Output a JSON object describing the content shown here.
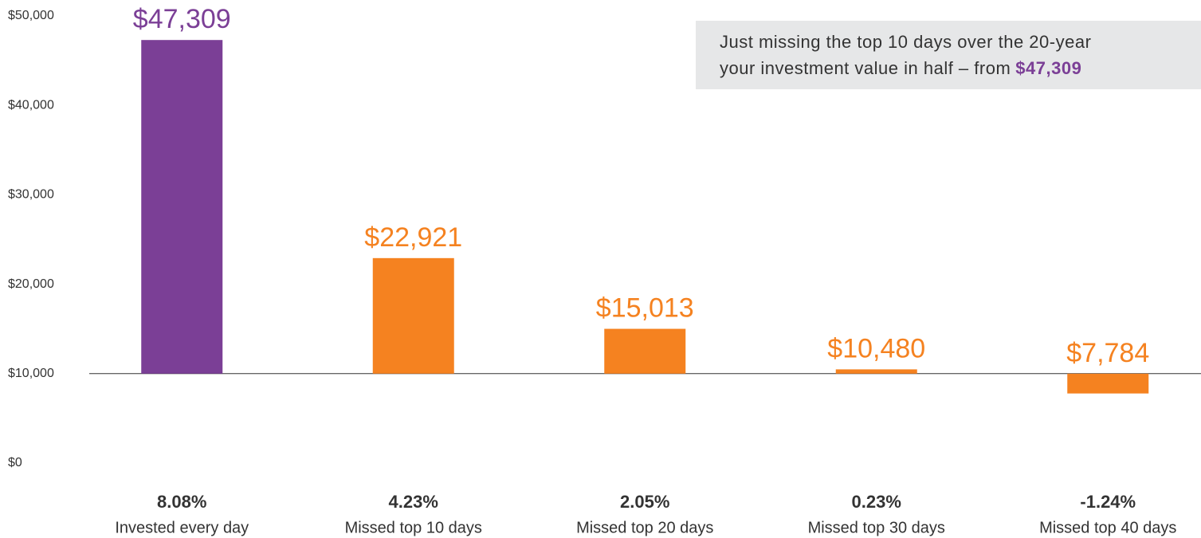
{
  "chart_data": {
    "type": "bar",
    "categories": [
      "Invested every day",
      "Missed top 10 days",
      "Missed top 20 days",
      "Missed top 30 days",
      "Missed top 40 days"
    ],
    "annualized_returns": [
      "8.08%",
      "4.23%",
      "2.05%",
      "0.23%",
      "-1.24%"
    ],
    "values": [
      47309,
      22921,
      15013,
      10480,
      7784
    ],
    "value_labels": [
      "$47,309",
      "$22,921",
      "$15,013",
      "$10,480",
      "$7,784"
    ],
    "colors": [
      "#7b3f96",
      "#f58220",
      "#f58220",
      "#f58220",
      "#f58220"
    ],
    "baseline": 10000,
    "ylim": [
      0,
      50000
    ],
    "yticks": [
      {
        "value": 0,
        "label": "$0"
      },
      {
        "value": 10000,
        "label": "$10,000"
      },
      {
        "value": 20000,
        "label": "$20,000"
      },
      {
        "value": 30000,
        "label": "$30,000"
      },
      {
        "value": 40000,
        "label": "$40,000"
      },
      {
        "value": 50000,
        "label": "$50,000"
      }
    ],
    "annotation": {
      "lines": [
        "Just missing the top 10 days over the 20-year",
        "your investment value in half – from"
      ],
      "highlight": "$47,309",
      "highlight_color": "#7b3f96"
    },
    "grid": false
  }
}
